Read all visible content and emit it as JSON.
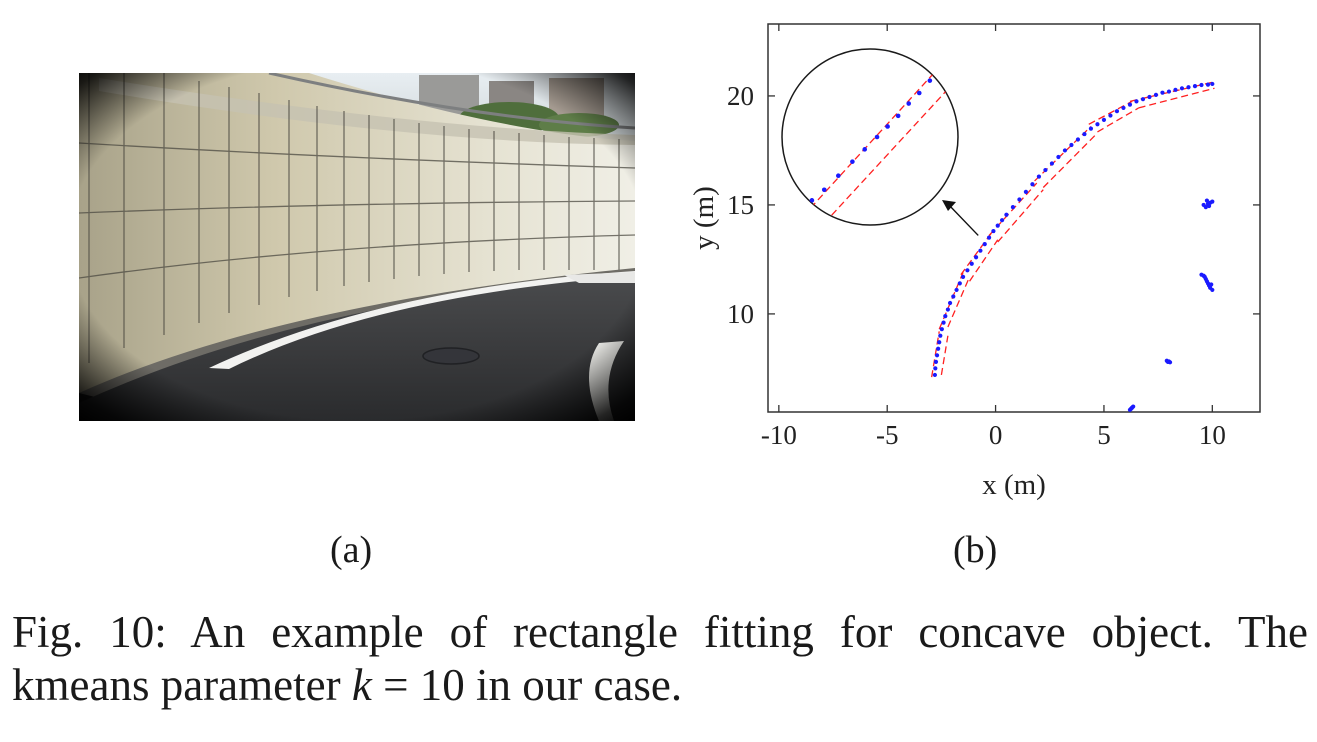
{
  "figure": {
    "sublabel_a": "(a)",
    "sublabel_b": "(b)",
    "caption_part1": "Fig. 10: An example of rectangle fitting for concave object. The kmeans parameter ",
    "caption_k": "k",
    "caption_part2": " = 10 in our case."
  },
  "colors": {
    "points": "#1a1aff",
    "fit_lines": "#ff2020",
    "axes": "#333333"
  },
  "chart_data": {
    "type": "scatter",
    "title": "",
    "xlabel": "x (m)",
    "ylabel": "y (m)",
    "xlim": [
      -10.5,
      12.2
    ],
    "ylim": [
      5.5,
      23.3
    ],
    "xticks": [
      "-10",
      "-5",
      "0",
      "5",
      "10"
    ],
    "yticks": [
      "10",
      "15",
      "20"
    ],
    "xtick_values": [
      -10,
      -5,
      0,
      5,
      10
    ],
    "ytick_values": [
      10,
      15,
      20
    ],
    "grid": false,
    "legend": "none",
    "series": [
      {
        "kind": "points",
        "x": [
          -2.8,
          -2.78,
          -2.75,
          -2.7,
          -2.65,
          -2.6,
          -2.55,
          -2.48,
          -2.4,
          -2.32,
          -2.2,
          -2.1,
          -1.95,
          -1.8,
          -1.65,
          -1.5,
          -1.3,
          -1.1,
          -0.9,
          -0.7,
          -0.5,
          -0.3,
          -0.1,
          0.1,
          0.3,
          0.5,
          0.8,
          1.1,
          1.4,
          1.7,
          2.0,
          2.3,
          2.6,
          2.9,
          3.2,
          3.5,
          3.8,
          4.1,
          4.4,
          4.7,
          5.0,
          5.3,
          5.6,
          5.9,
          6.2,
          6.5,
          6.8,
          7.1,
          7.4,
          7.7,
          8.0,
          8.3,
          8.6,
          8.9,
          9.2,
          9.5,
          9.8,
          10.0
        ],
        "y": [
          7.2,
          7.5,
          7.8,
          8.1,
          8.4,
          8.7,
          9.0,
          9.3,
          9.6,
          9.9,
          10.2,
          10.5,
          10.8,
          11.1,
          11.4,
          11.7,
          12.0,
          12.3,
          12.6,
          12.9,
          13.2,
          13.5,
          13.8,
          14.05,
          14.3,
          14.55,
          14.9,
          15.25,
          15.6,
          15.95,
          16.3,
          16.6,
          16.9,
          17.2,
          17.5,
          17.75,
          18.0,
          18.25,
          18.5,
          18.7,
          18.9,
          19.1,
          19.3,
          19.45,
          19.6,
          19.75,
          19.85,
          19.95,
          20.05,
          20.15,
          20.2,
          20.28,
          20.35,
          20.4,
          20.45,
          20.5,
          20.52,
          20.55
        ]
      },
      {
        "kind": "points",
        "x": [
          9.6,
          9.7,
          9.75,
          9.8,
          9.85,
          9.9,
          10.0
        ],
        "y": [
          15.0,
          14.9,
          15.2,
          15.05,
          14.95,
          15.1,
          15.15
        ]
      },
      {
        "kind": "points",
        "x": [
          9.5,
          9.6,
          9.65,
          9.7,
          9.75,
          9.8,
          9.85,
          9.9,
          9.95,
          10.0
        ],
        "y": [
          11.8,
          11.75,
          11.7,
          11.6,
          11.5,
          11.4,
          11.3,
          11.2,
          11.35,
          11.1
        ]
      },
      {
        "kind": "points",
        "x": [
          7.9,
          7.95,
          8.0,
          8.05
        ],
        "y": [
          7.85,
          7.8,
          7.82,
          7.78
        ]
      },
      {
        "kind": "points",
        "x": [
          6.2,
          6.25,
          6.3,
          6.35
        ],
        "y": [
          5.6,
          5.65,
          5.7,
          5.75
        ]
      },
      {
        "kind": "fit-lines",
        "segments": [
          [
            [
              -2.95,
              7.1
            ],
            [
              -2.6,
              9.2
            ]
          ],
          [
            [
              -2.5,
              7.2
            ],
            [
              -2.2,
              9.0
            ]
          ],
          [
            [
              -2.6,
              9.3
            ],
            [
              -1.5,
              11.9
            ]
          ],
          [
            [
              -2.2,
              9.4
            ],
            [
              -1.2,
              11.7
            ]
          ],
          [
            [
              -1.6,
              11.8
            ],
            [
              -0.2,
              13.7
            ]
          ],
          [
            [
              -1.2,
              11.5
            ],
            [
              0.1,
              13.4
            ]
          ],
          [
            [
              -0.3,
              13.6
            ],
            [
              1.9,
              16.0
            ]
          ],
          [
            [
              0.1,
              13.3
            ],
            [
              2.2,
              15.7
            ]
          ],
          [
            [
              1.8,
              16.1
            ],
            [
              4.4,
              18.6
            ]
          ],
          [
            [
              2.2,
              15.8
            ],
            [
              4.7,
              18.3
            ]
          ],
          [
            [
              4.3,
              18.7
            ],
            [
              6.3,
              19.75
            ]
          ],
          [
            [
              4.7,
              18.35
            ],
            [
              6.6,
              19.45
            ]
          ],
          [
            [
              6.2,
              19.75
            ],
            [
              10.1,
              20.65
            ]
          ],
          [
            [
              6.6,
              19.45
            ],
            [
              10.1,
              20.35
            ]
          ]
        ]
      }
    ],
    "inset": {
      "description": "",
      "points": [
        [
          0.1,
          0.92
        ],
        [
          0.17,
          0.86
        ],
        [
          0.24,
          0.8
        ],
        [
          0.32,
          0.72
        ],
        [
          0.4,
          0.64
        ],
        [
          0.47,
          0.57
        ],
        [
          0.54,
          0.5
        ],
        [
          0.6,
          0.44
        ],
        [
          0.66,
          0.38
        ],
        [
          0.72,
          0.31
        ],
        [
          0.78,
          0.25
        ],
        [
          0.84,
          0.18
        ]
      ],
      "lines": [
        [
          [
            0.12,
            0.95
          ],
          [
            0.86,
            0.14
          ]
        ],
        [
          [
            0.24,
            0.99
          ],
          [
            0.95,
            0.22
          ]
        ]
      ]
    }
  }
}
